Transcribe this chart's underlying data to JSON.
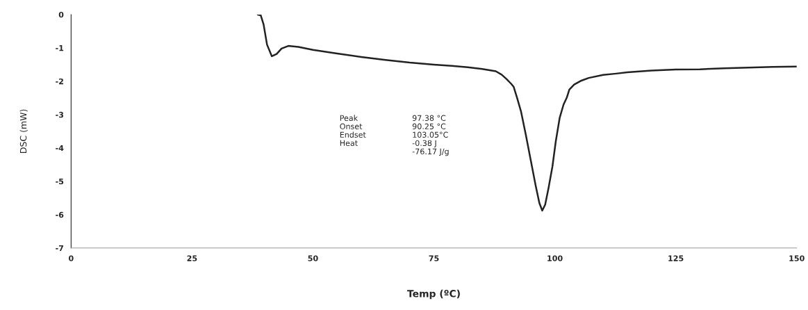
{
  "chart_data": {
    "type": "line",
    "xlabel": "Temp (ºC)",
    "ylabel": "DSC (mW)",
    "series": [
      {
        "color": "#222222",
        "x": [
          38.6,
          39.2,
          39.8,
          40.5,
          41.5,
          42.5,
          43.5,
          44.9,
          47,
          50,
          55,
          60,
          65,
          70,
          75,
          78.7,
          82,
          85,
          87.8,
          89,
          90,
          91,
          91.5,
          92.2,
          93,
          94,
          95,
          96,
          96.8,
          97.4,
          98,
          98.7,
          99.5,
          100.2,
          101,
          101.8,
          102.5,
          103,
          104,
          105.5,
          107,
          110,
          112.7,
          115,
          120,
          125,
          130,
          135,
          140,
          145,
          150
        ],
        "values": [
          0,
          -0.02,
          -0.3,
          -0.9,
          -1.25,
          -1.18,
          -1.02,
          -0.94,
          -0.97,
          -1.06,
          -1.17,
          -1.27,
          -1.36,
          -1.44,
          -1.5,
          -1.54,
          -1.58,
          -1.63,
          -1.7,
          -1.8,
          -1.93,
          -2.08,
          -2.17,
          -2.5,
          -2.9,
          -3.6,
          -4.35,
          -5.1,
          -5.65,
          -5.88,
          -5.7,
          -5.2,
          -4.56,
          -3.8,
          -3.1,
          -2.7,
          -2.48,
          -2.25,
          -2.1,
          -1.98,
          -1.9,
          -1.81,
          -1.77,
          -1.73,
          -1.68,
          -1.65,
          -1.64,
          -1.61,
          -1.59,
          -1.57,
          -1.56
        ]
      }
    ],
    "xlim": [
      0,
      150
    ],
    "xticks": [
      0,
      25,
      50,
      75,
      100,
      125,
      150
    ],
    "ylim": [
      -7,
      0
    ],
    "yticks": [
      0,
      -1,
      -2,
      -3,
      -4,
      -5,
      -6,
      -7
    ],
    "annotations": [
      "Peak\nOnset\nEndset\nHeat",
      "97.38 °C\n90.25 °C\n103.05°C\n-0.38 J\n-76.17 J/g"
    ],
    "grid": false,
    "legend": false,
    "marker": "none",
    "line_style": "solid"
  }
}
